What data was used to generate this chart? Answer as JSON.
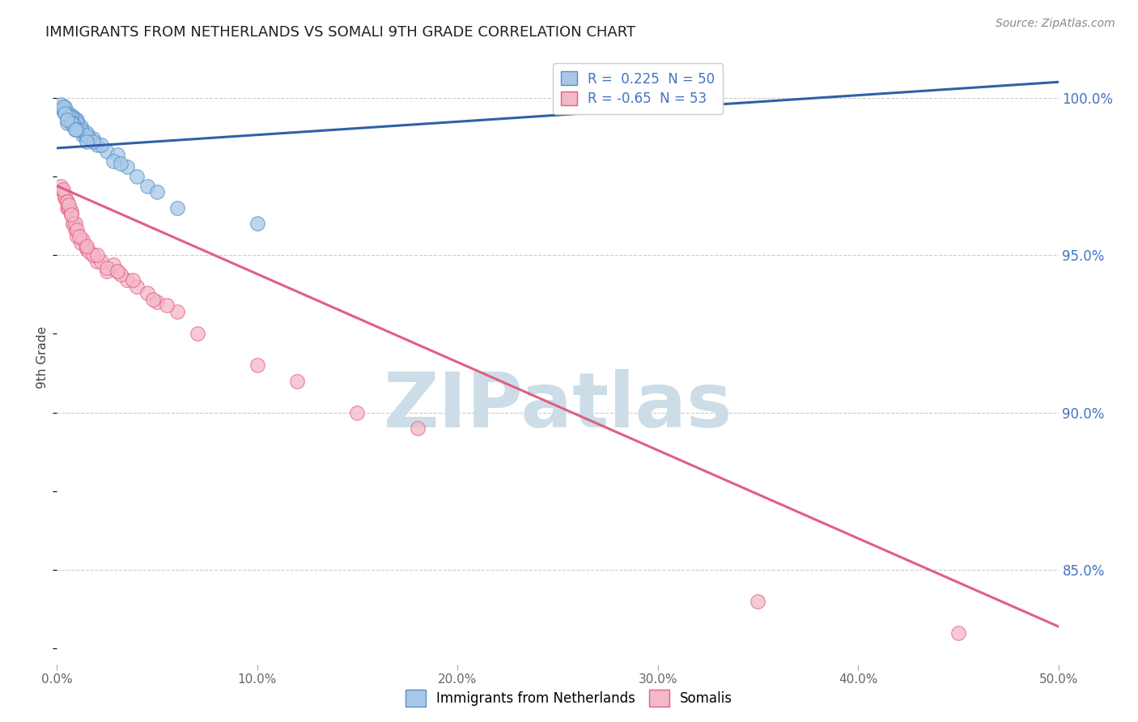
{
  "title": "IMMIGRANTS FROM NETHERLANDS VS SOMALI 9TH GRADE CORRELATION CHART",
  "source": "Source: ZipAtlas.com",
  "ylabel": "9th Grade",
  "x_min": 0.0,
  "x_max": 50.0,
  "y_min": 82.0,
  "y_max": 101.5,
  "x_ticks": [
    0.0,
    10.0,
    20.0,
    30.0,
    40.0,
    50.0
  ],
  "x_tick_labels": [
    "0.0%",
    "10.0%",
    "20.0%",
    "30.0%",
    "40.0%",
    "50.0%"
  ],
  "y_ticks": [
    85.0,
    90.0,
    95.0,
    100.0
  ],
  "y_tick_labels": [
    "85.0%",
    "90.0%",
    "95.0%",
    "100.0%"
  ],
  "blue_R": 0.225,
  "blue_N": 50,
  "pink_R": -0.65,
  "pink_N": 53,
  "blue_color": "#a8c8e8",
  "pink_color": "#f4b8c8",
  "blue_edge_color": "#5090c8",
  "pink_edge_color": "#e06080",
  "blue_line_color": "#3060a8",
  "pink_line_color": "#e06080",
  "legend_blue_label": "Immigrants from Netherlands",
  "legend_pink_label": "Somalis",
  "watermark": "ZIPatlas",
  "watermark_color": "#ccdde8",
  "blue_scatter_x": [
    0.2,
    0.3,
    0.5,
    0.8,
    1.0,
    0.4,
    0.6,
    1.2,
    0.7,
    0.9,
    1.5,
    0.3,
    0.5,
    0.8,
    1.1,
    1.3,
    0.6,
    0.4,
    1.0,
    0.7,
    1.8,
    0.5,
    0.9,
    1.4,
    0.3,
    0.6,
    1.2,
    1.6,
    0.8,
    0.4,
    2.0,
    1.5,
    0.7,
    2.5,
    1.0,
    0.5,
    2.2,
    1.8,
    3.0,
    0.9,
    3.5,
    2.8,
    4.0,
    3.2,
    1.5,
    4.5,
    5.0,
    6.0,
    10.0,
    28.0
  ],
  "blue_scatter_y": [
    99.8,
    99.6,
    99.5,
    99.4,
    99.3,
    99.7,
    99.5,
    99.1,
    99.4,
    99.3,
    98.9,
    99.6,
    99.4,
    99.2,
    99.0,
    98.8,
    99.3,
    99.5,
    99.2,
    99.4,
    98.7,
    99.2,
    99.0,
    98.8,
    99.7,
    99.4,
    99.0,
    98.7,
    99.2,
    99.5,
    98.5,
    98.8,
    99.2,
    98.3,
    99.0,
    99.3,
    98.5,
    98.6,
    98.2,
    99.0,
    97.8,
    98.0,
    97.5,
    97.9,
    98.6,
    97.2,
    97.0,
    96.5,
    96.0,
    100.2
  ],
  "pink_scatter_x": [
    0.2,
    0.4,
    0.3,
    0.5,
    0.6,
    0.4,
    0.3,
    0.5,
    0.7,
    0.8,
    0.6,
    0.9,
    0.5,
    0.7,
    1.0,
    0.8,
    0.6,
    1.2,
    1.5,
    0.9,
    1.0,
    0.7,
    1.3,
    1.8,
    1.5,
    2.0,
    1.1,
    1.6,
    2.5,
    2.2,
    1.8,
    3.0,
    2.8,
    1.5,
    3.5,
    2.5,
    2.0,
    3.2,
    4.0,
    3.8,
    4.5,
    5.0,
    6.0,
    5.5,
    3.0,
    4.8,
    7.0,
    10.0,
    12.0,
    15.0,
    18.0,
    35.0,
    45.0
  ],
  "pink_scatter_y": [
    97.2,
    96.8,
    97.0,
    96.5,
    96.5,
    96.9,
    97.1,
    96.7,
    96.3,
    96.0,
    96.5,
    95.8,
    96.7,
    96.4,
    95.6,
    96.0,
    96.6,
    95.4,
    95.2,
    96.0,
    95.8,
    96.3,
    95.5,
    95.0,
    95.2,
    94.8,
    95.6,
    95.1,
    94.5,
    94.8,
    95.0,
    94.5,
    94.7,
    95.3,
    94.2,
    94.6,
    95.0,
    94.4,
    94.0,
    94.2,
    93.8,
    93.5,
    93.2,
    93.4,
    94.5,
    93.6,
    92.5,
    91.5,
    91.0,
    90.0,
    89.5,
    84.0,
    83.0
  ],
  "blue_trend_x": [
    0.0,
    50.0
  ],
  "blue_trend_y": [
    98.4,
    100.5
  ],
  "pink_trend_x": [
    0.0,
    50.0
  ],
  "pink_trend_y": [
    97.2,
    83.2
  ]
}
